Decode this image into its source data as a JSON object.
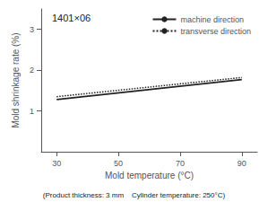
{
  "chart_data": {
    "type": "line",
    "xlabel": "Mold temperature (°C)",
    "ylabel": "Mold shrinkage rate (%)",
    "annotations": [
      "1401×06"
    ],
    "footnote": "(Product thickness: 3 mm    Cylinder temperature: 250°C)",
    "series": [
      {
        "name": "machine direction",
        "color": "#222222",
        "line_style": "solid",
        "x": [
          30,
          90
        ],
        "values": [
          1.28,
          1.77
        ]
      },
      {
        "name": "transverse direction",
        "color": "#222222",
        "line_style": "dotted",
        "x": [
          30,
          90
        ],
        "values": [
          1.35,
          1.82
        ]
      }
    ],
    "xlim": [
      25,
      95
    ],
    "xticks": [
      30,
      50,
      70,
      90
    ],
    "ylim": [
      0,
      3.5
    ],
    "yticks": [
      1,
      2,
      3
    ],
    "grid": false,
    "legend": "upper right"
  }
}
